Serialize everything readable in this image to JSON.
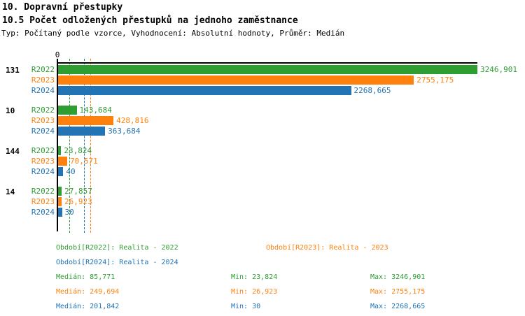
{
  "header": {
    "title1": "10. Dopravní přestupky",
    "title2": "10.5 Počet odložených přestupků na jednoho zaměstnance",
    "subtitle": "Typ: Počítaný podle vzorce, Vyhodnocení: Absolutní hodnoty, Průměr: Medián"
  },
  "colors": {
    "r2022": "#2e9e33",
    "r2023": "#ff810d",
    "r2024": "#2274b5",
    "axis": "#000000",
    "background": "#ffffff"
  },
  "chart_data": {
    "type": "bar",
    "orientation": "horizontal",
    "title": "10.5 Počet odložených přestupků na jednoho zaměstnance",
    "value_axis": {
      "zero_label": "0",
      "min": 0,
      "max": 3246.901
    },
    "series": [
      "R2022",
      "R2023",
      "R2024"
    ],
    "series_colors": [
      "#2e9e33",
      "#ff810d",
      "#2274b5"
    ],
    "medians": [
      85.771,
      249.694,
      201.842
    ],
    "groups": [
      {
        "label": "131",
        "values": [
          3246.901,
          2755.175,
          2268.665
        ],
        "value_labels": [
          "3246,901",
          "2755,175",
          "2268,665"
        ]
      },
      {
        "label": "10",
        "values": [
          143.684,
          428.816,
          363.684
        ],
        "value_labels": [
          "143,684",
          "428,816",
          "363,684"
        ]
      },
      {
        "label": "144",
        "values": [
          23.824,
          70.571,
          40
        ],
        "value_labels": [
          "23,824",
          "70,571",
          "40"
        ]
      },
      {
        "label": "14",
        "values": [
          27.857,
          26.923,
          30
        ],
        "value_labels": [
          "27,857",
          "26,923",
          "30"
        ]
      }
    ]
  },
  "legend": {
    "periods": [
      {
        "label": "Období[R2022]: Realita - 2022"
      },
      {
        "label": "Období[R2023]: Realita - 2023"
      },
      {
        "label": "Období[R2024]: Realita - 2024"
      }
    ],
    "stats": [
      {
        "median": "Medián: 85,771",
        "min": "Min: 23,824",
        "max": "Max: 3246,901"
      },
      {
        "median": "Medián: 249,694",
        "min": "Min: 26,923",
        "max": "Max: 2755,175"
      },
      {
        "median": "Medián: 201,842",
        "min": "Min: 30",
        "max": "Max: 2268,665"
      }
    ]
  }
}
